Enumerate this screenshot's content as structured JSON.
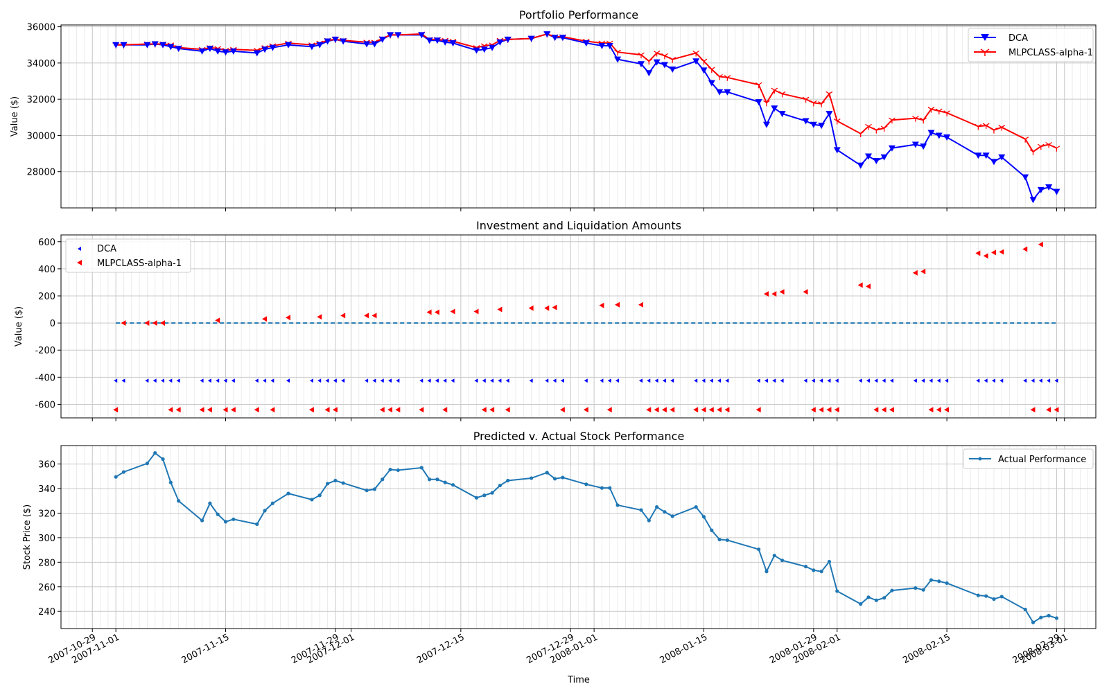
{
  "colors": {
    "dca": "#0000ff",
    "mlp": "#ff0000",
    "actual": "#1f77b4",
    "zero_line": "#1f77b4",
    "grid": "#b0b0b0"
  },
  "x_axis": {
    "label": "Time",
    "range": [
      "2007-10-25",
      "2008-03-05"
    ],
    "ticks": [
      {
        "date": "2007-10-29",
        "label": "2007-10-29"
      },
      {
        "date": "2007-11-01",
        "label": "2007-11-01"
      },
      {
        "date": "2007-11-15",
        "label": "2007-11-15"
      },
      {
        "date": "2007-11-29",
        "label": "2007-11-29"
      },
      {
        "date": "2007-12-01",
        "label": "2007-12-01"
      },
      {
        "date": "2007-12-15",
        "label": "2007-12-15"
      },
      {
        "date": "2007-12-29",
        "label": "2007-12-29"
      },
      {
        "date": "2008-01-01",
        "label": "2008-01-01"
      },
      {
        "date": "2008-01-15",
        "label": "2008-01-15"
      },
      {
        "date": "2008-01-29",
        "label": "2008-01-29"
      },
      {
        "date": "2008-02-01",
        "label": "2008-02-01"
      },
      {
        "date": "2008-02-15",
        "label": "2008-02-15"
      },
      {
        "date": "2008-02-29",
        "label": "2008-02-29"
      },
      {
        "date": "2008-03-01",
        "label": "2008-03-01"
      }
    ]
  },
  "chart_data": [
    {
      "type": "line",
      "title": "Portfolio Performance",
      "xlabel": "",
      "ylabel": "Value ($)",
      "ylim": [
        26000,
        36100
      ],
      "yticks": [
        28000,
        30000,
        32000,
        34000,
        36000
      ],
      "grid": true,
      "legend": "top-right",
      "series": [
        {
          "name": "DCA",
          "color": "#0000ff",
          "marker": "triangle-down",
          "values": [
            35000,
            35000,
            35000,
            35050,
            35000,
            34900,
            34800,
            34650,
            34800,
            34650,
            34600,
            34650,
            34550,
            34750,
            34850,
            35000,
            34900,
            35000,
            35200,
            35300,
            35200,
            35050,
            35050,
            35300,
            35550,
            35550,
            35550,
            35250,
            35250,
            35150,
            35100,
            34700,
            34750,
            34850,
            35150,
            35300,
            35350,
            35600,
            35400,
            35400,
            35100,
            34950,
            34950,
            34200,
            33950,
            33450,
            34050,
            33900,
            33650,
            34100,
            33600,
            32900,
            32400,
            32400,
            31850,
            30600,
            31500,
            31200,
            30800,
            30600,
            30550,
            31200,
            29200,
            28350,
            28850,
            28600,
            28800,
            29300,
            29500,
            29400,
            30150,
            30000,
            29900,
            28900,
            28900,
            28550,
            28800,
            27700,
            26450,
            27000,
            27150,
            26900
          ]
        },
        {
          "name": "MLPCLASS-alpha-1",
          "color": "#ff0000",
          "marker": "tri",
          "values": [
            35000,
            35000,
            35050,
            35050,
            35050,
            35000,
            34850,
            34750,
            34850,
            34800,
            34700,
            34750,
            34700,
            34850,
            34950,
            35100,
            35000,
            35100,
            35250,
            35300,
            35250,
            35150,
            35150,
            35350,
            35550,
            35550,
            35600,
            35300,
            35300,
            35250,
            35200,
            34850,
            34950,
            35000,
            35250,
            35300,
            35350,
            35600,
            35450,
            35450,
            35200,
            35100,
            35100,
            34600,
            34450,
            34100,
            34550,
            34400,
            34200,
            34550,
            34100,
            33650,
            33250,
            33200,
            32800,
            31800,
            32500,
            32300,
            32000,
            31800,
            31750,
            32300,
            30800,
            30100,
            30500,
            30300,
            30400,
            30850,
            30950,
            30850,
            31450,
            31350,
            31250,
            30500,
            30550,
            30300,
            30450,
            29800,
            29100,
            29400,
            29500,
            29300
          ]
        }
      ]
    },
    {
      "type": "scatter",
      "title": "Investment and Liquidation Amounts",
      "xlabel": "",
      "ylabel": "Value ($)",
      "ylim": [
        -700,
        650
      ],
      "yticks": [
        -600,
        -400,
        -200,
        0,
        200,
        400,
        600
      ],
      "grid": true,
      "legend": "top-left",
      "zero_line": true,
      "series": [
        {
          "name": "DCA",
          "color": "#0000ff",
          "marker": "triangle-left-small",
          "points": "all dates at -425"
        },
        {
          "name": "MLPCLASS-alpha-1",
          "color": "#ff0000",
          "marker": "triangle-left",
          "values": [
            -640,
            0,
            0,
            0,
            0,
            -640,
            -640,
            -640,
            -640,
            20,
            -640,
            -640,
            -640,
            30,
            -640,
            40,
            -640,
            45,
            -640,
            -640,
            55,
            55,
            55,
            -640,
            -640,
            -640,
            -640,
            80,
            80,
            -640,
            85,
            85,
            -640,
            -640,
            100,
            -640,
            110,
            110,
            115,
            -640,
            -640,
            130,
            -640,
            135,
            135,
            -640,
            -640,
            -640,
            -640,
            -640,
            -640,
            -640,
            -640,
            -640,
            -640,
            215,
            215,
            230,
            230,
            -640,
            -640,
            -640,
            -640,
            280,
            270,
            -640,
            -640,
            -640,
            370,
            380,
            -640,
            -640,
            -640,
            515,
            495,
            520,
            525,
            545,
            -640,
            580,
            -640,
            -640
          ]
        }
      ]
    },
    {
      "type": "line",
      "title": "Predicted v. Actual Stock Performance",
      "xlabel": "Time",
      "ylabel": "Stock Price ($)",
      "ylim": [
        226,
        375
      ],
      "yticks": [
        240,
        260,
        280,
        300,
        320,
        340,
        360
      ],
      "grid": true,
      "legend": "top-right",
      "series": [
        {
          "name": "Actual Performance",
          "color": "#1f77b4",
          "marker": "point",
          "values": [
            349.5,
            353.5,
            360.5,
            369,
            364,
            345,
            330,
            314,
            328,
            319,
            313,
            315,
            311,
            322,
            328,
            336,
            331,
            334.5,
            344,
            346.5,
            344.5,
            338.5,
            339.5,
            347.5,
            355.5,
            355,
            357,
            347.5,
            347.5,
            345,
            343,
            332.5,
            334.5,
            336.5,
            342.5,
            346.5,
            348.5,
            353,
            348,
            349,
            343.5,
            340.5,
            340.5,
            326.5,
            322.5,
            314,
            325,
            321,
            317.5,
            325,
            317,
            306,
            298.5,
            298,
            290.5,
            272.5,
            285.5,
            281.5,
            276.5,
            273.5,
            272.5,
            280.5,
            256.5,
            246,
            251.5,
            249,
            251,
            257,
            259,
            257.5,
            265.5,
            264.5,
            263,
            253,
            252.5,
            250,
            252,
            241.5,
            231,
            235,
            236.5,
            234.5
          ]
        }
      ]
    }
  ],
  "dates": [
    "2007-11-01",
    "2007-11-02",
    "2007-11-05",
    "2007-11-06",
    "2007-11-07",
    "2007-11-08",
    "2007-11-09",
    "2007-11-12",
    "2007-11-13",
    "2007-11-14",
    "2007-11-15",
    "2007-11-16",
    "2007-11-19",
    "2007-11-20",
    "2007-11-21",
    "2007-11-23",
    "2007-11-26",
    "2007-11-27",
    "2007-11-28",
    "2007-11-29",
    "2007-11-30",
    "2007-12-03",
    "2007-12-04",
    "2007-12-05",
    "2007-12-06",
    "2007-12-07",
    "2007-12-10",
    "2007-12-11",
    "2007-12-12",
    "2007-12-13",
    "2007-12-14",
    "2007-12-17",
    "2007-12-18",
    "2007-12-19",
    "2007-12-20",
    "2007-12-21",
    "2007-12-24",
    "2007-12-26",
    "2007-12-27",
    "2007-12-28",
    "2007-12-31",
    "2008-01-02",
    "2008-01-03",
    "2008-01-04",
    "2008-01-07",
    "2008-01-08",
    "2008-01-09",
    "2008-01-10",
    "2008-01-11",
    "2008-01-14",
    "2008-01-15",
    "2008-01-16",
    "2008-01-17",
    "2008-01-18",
    "2008-01-22",
    "2008-01-23",
    "2008-01-24",
    "2008-01-25",
    "2008-01-28",
    "2008-01-29",
    "2008-01-30",
    "2008-01-31",
    "2008-02-01",
    "2008-02-04",
    "2008-02-05",
    "2008-02-06",
    "2008-02-07",
    "2008-02-08",
    "2008-02-11",
    "2008-02-12",
    "2008-02-13",
    "2008-02-14",
    "2008-02-15",
    "2008-02-19",
    "2008-02-20",
    "2008-02-21",
    "2008-02-22",
    "2008-02-25",
    "2008-02-26",
    "2008-02-27",
    "2008-02-28",
    "2008-02-29"
  ]
}
